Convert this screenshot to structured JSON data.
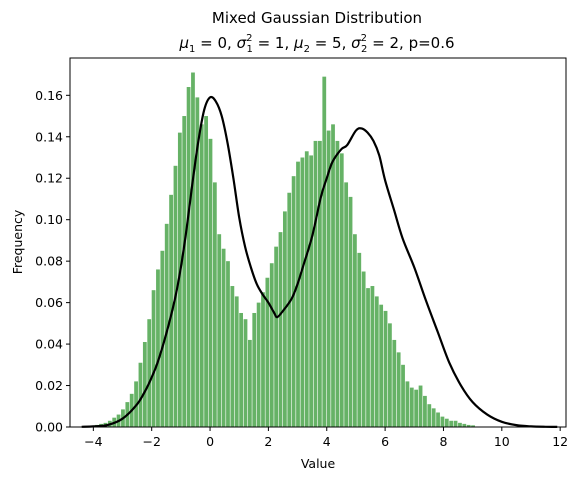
{
  "chart_data": {
    "type": "bar",
    "title": "Mixed Gaussian Distribution",
    "subtitle": {
      "mu1_sym": "μ",
      "mu1_sub": "1",
      "mu1_val": " = 0, ",
      "sig1_sym": "σ",
      "sig1_sub": "1",
      "sig1_sup": "2",
      "sig1_val": " = 1, ",
      "mu2_sym": "μ",
      "mu2_sub": "2",
      "mu2_val": " = 5, ",
      "sig2_sym": "σ",
      "sig2_sub": "2",
      "sig2_sup": "2",
      "sig2_val": " = 2, p=0.6"
    },
    "xlabel": "Value",
    "ylabel": "Frequency",
    "xlim": [
      -4.8,
      12.2
    ],
    "ylim": [
      0,
      0.178
    ],
    "x_ticks": [
      -4,
      -2,
      0,
      2,
      4,
      6,
      8,
      10,
      12
    ],
    "x_tick_labels": [
      "−4",
      "−2",
      "0",
      "2",
      "4",
      "6",
      "8",
      "10",
      "12"
    ],
    "y_ticks": [
      0,
      0.02,
      0.04,
      0.06,
      0.08,
      0.1,
      0.12,
      0.14,
      0.16
    ],
    "y_tick_labels": [
      "0.00",
      "0.02",
      "0.04",
      "0.06",
      "0.08",
      "0.10",
      "0.12",
      "0.14",
      "0.16"
    ],
    "grid": false,
    "histogram": {
      "color": "#66b266",
      "bin_start": -4.4,
      "bin_width": 0.15,
      "values": [
        0,
        0.0005,
        0.0007,
        0.001,
        0.0015,
        0.002,
        0.003,
        0.0045,
        0.006,
        0.0085,
        0.012,
        0.016,
        0.022,
        0.031,
        0.041,
        0.052,
        0.066,
        0.076,
        0.085,
        0.098,
        0.112,
        0.126,
        0.142,
        0.15,
        0.164,
        0.171,
        0.159,
        0.146,
        0.15,
        0.139,
        0.118,
        0.093,
        0.086,
        0.08,
        0.068,
        0.063,
        0.055,
        0.052,
        0.042,
        0.055,
        0.06,
        0.065,
        0.072,
        0.079,
        0.087,
        0.094,
        0.104,
        0.113,
        0.121,
        0.128,
        0.13,
        0.133,
        0.131,
        0.138,
        0.138,
        0.169,
        0.143,
        0.146,
        0.138,
        0.132,
        0.118,
        0.111,
        0.093,
        0.084,
        0.075,
        0.067,
        0.068,
        0.063,
        0.059,
        0.056,
        0.05,
        0.042,
        0.036,
        0.03,
        0.022,
        0.019,
        0.018,
        0.02,
        0.015,
        0.011,
        0.009,
        0.007,
        0.005,
        0.004,
        0.003,
        0.003,
        0.002,
        0.0015,
        0.001,
        0.0008
      ]
    },
    "series": [
      {
        "type": "line",
        "color": "#000000",
        "x": [
          -4.4,
          -4.0,
          -3.5,
          -3.0,
          -2.5,
          -2.2,
          -2.0,
          -1.8,
          -1.5,
          -1.2,
          -1.0,
          -0.8,
          -0.6,
          -0.4,
          -0.2,
          0.0,
          0.2,
          0.4,
          0.6,
          0.8,
          1.0,
          1.2,
          1.4,
          1.6,
          1.8,
          2.0,
          2.2,
          2.3,
          2.5,
          2.8,
          3.0,
          3.2,
          3.5,
          3.8,
          4.0,
          4.2,
          4.5,
          4.7,
          5.0,
          5.2,
          5.4,
          5.6,
          5.8,
          6.0,
          6.3,
          6.6,
          7.0,
          7.4,
          7.8,
          8.2,
          8.6,
          9.0,
          9.5,
          10.0,
          10.5,
          11.0,
          11.5,
          11.9
        ],
        "y": [
          0.0001,
          0.0003,
          0.001,
          0.004,
          0.011,
          0.018,
          0.024,
          0.031,
          0.045,
          0.062,
          0.077,
          0.096,
          0.118,
          0.138,
          0.153,
          0.159,
          0.157,
          0.15,
          0.137,
          0.12,
          0.101,
          0.087,
          0.077,
          0.069,
          0.064,
          0.06,
          0.055,
          0.053,
          0.056,
          0.062,
          0.069,
          0.078,
          0.092,
          0.111,
          0.12,
          0.128,
          0.134,
          0.136,
          0.143,
          0.144,
          0.142,
          0.138,
          0.131,
          0.119,
          0.105,
          0.091,
          0.077,
          0.061,
          0.046,
          0.031,
          0.02,
          0.012,
          0.006,
          0.0025,
          0.0009,
          0.0003,
          0.0001,
          5e-05
        ]
      }
    ]
  }
}
